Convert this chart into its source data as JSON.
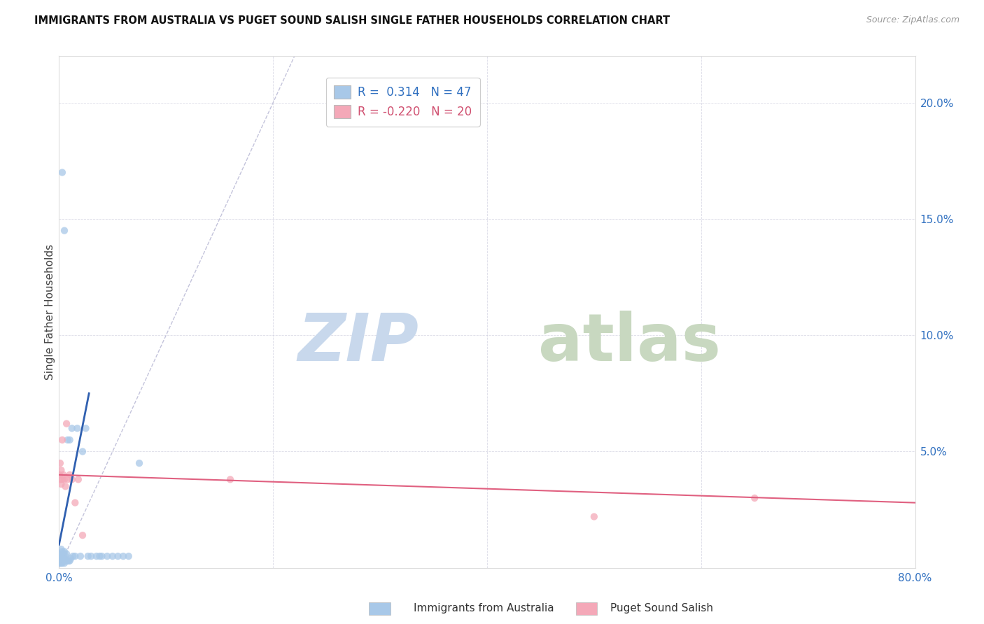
{
  "title": "IMMIGRANTS FROM AUSTRALIA VS PUGET SOUND SALISH SINGLE FATHER HOUSEHOLDS CORRELATION CHART",
  "source": "Source: ZipAtlas.com",
  "ylabel": "Single Father Households",
  "xlim": [
    0.0,
    0.8
  ],
  "ylim": [
    0.0,
    0.22
  ],
  "color_blue": "#A8C8E8",
  "color_pink": "#F4A8B8",
  "color_line_blue": "#3060B0",
  "color_line_pink": "#E06080",
  "color_diag": "#AAAACC",
  "background": "#FFFFFF",
  "australia_x": [
    0.0005,
    0.001,
    0.001,
    0.001,
    0.0015,
    0.002,
    0.002,
    0.002,
    0.003,
    0.003,
    0.003,
    0.004,
    0.004,
    0.004,
    0.005,
    0.005,
    0.005,
    0.006,
    0.006,
    0.007,
    0.007,
    0.008,
    0.008,
    0.009,
    0.01,
    0.01,
    0.011,
    0.012,
    0.013,
    0.015,
    0.017,
    0.02,
    0.022,
    0.025,
    0.027,
    0.03,
    0.035,
    0.038,
    0.04,
    0.045,
    0.05,
    0.055,
    0.06,
    0.065,
    0.075,
    0.003,
    0.005
  ],
  "australia_y": [
    0.003,
    0.002,
    0.004,
    0.006,
    0.003,
    0.002,
    0.005,
    0.008,
    0.002,
    0.004,
    0.007,
    0.003,
    0.005,
    0.006,
    0.002,
    0.004,
    0.007,
    0.003,
    0.005,
    0.003,
    0.006,
    0.003,
    0.055,
    0.003,
    0.003,
    0.055,
    0.004,
    0.06,
    0.005,
    0.005,
    0.06,
    0.005,
    0.05,
    0.06,
    0.005,
    0.005,
    0.005,
    0.005,
    0.005,
    0.005,
    0.005,
    0.005,
    0.005,
    0.005,
    0.045,
    0.17,
    0.145
  ],
  "salish_x": [
    0.0005,
    0.001,
    0.001,
    0.002,
    0.002,
    0.003,
    0.003,
    0.004,
    0.005,
    0.006,
    0.007,
    0.008,
    0.01,
    0.012,
    0.015,
    0.018,
    0.022,
    0.16,
    0.5,
    0.65
  ],
  "salish_y": [
    0.04,
    0.038,
    0.045,
    0.036,
    0.042,
    0.038,
    0.055,
    0.04,
    0.038,
    0.035,
    0.062,
    0.038,
    0.04,
    0.038,
    0.028,
    0.038,
    0.014,
    0.038,
    0.022,
    0.03
  ],
  "aus_trend_x": [
    0.0,
    0.028
  ],
  "aus_trend_y": [
    0.01,
    0.075
  ],
  "sal_trend_x": [
    0.0,
    0.8
  ],
  "sal_trend_y": [
    0.04,
    0.028
  ]
}
